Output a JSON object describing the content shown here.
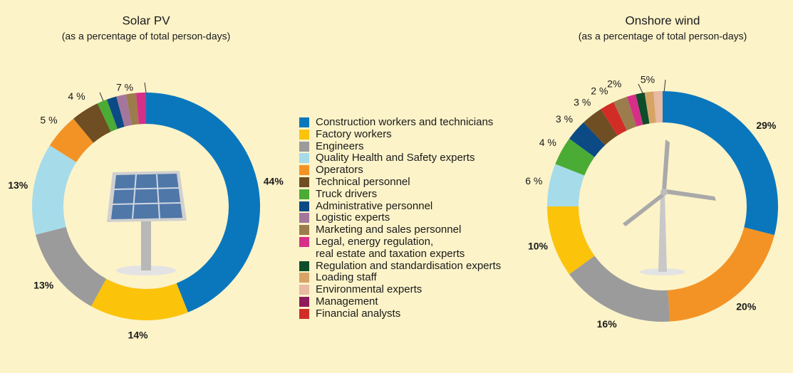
{
  "legend": {
    "items": [
      {
        "name": "Construction workers and technicians",
        "color": "#0a77bd"
      },
      {
        "name": "Factory workers",
        "color": "#fcc30b"
      },
      {
        "name": "Engineers",
        "color": "#9b9b9b"
      },
      {
        "name": "Quality Health and Safety experts",
        "color": "#a6dbea"
      },
      {
        "name": "Operators",
        "color": "#f39325"
      },
      {
        "name": "Technical personnel",
        "color": "#6f4e24"
      },
      {
        "name": "Truck drivers",
        "color": "#4aab35"
      },
      {
        "name": "Administrative personnel",
        "color": "#0b4a84"
      },
      {
        "name": "Logistic experts",
        "color": "#a5769b"
      },
      {
        "name": "Marketing and sales personnel",
        "color": "#9c7b4c"
      },
      {
        "name": "Legal, energy regulation,\nreal estate and taxation experts",
        "color": "#d62f88"
      },
      {
        "name": "Regulation and standardisation experts",
        "color": "#0e4d2a"
      },
      {
        "name": "Loading staff",
        "color": "#d7a466"
      },
      {
        "name": "Environmental experts",
        "color": "#e8b9a3"
      },
      {
        "name": "Management",
        "color": "#8e1b5b"
      },
      {
        "name": "Financial analysts",
        "color": "#d12d26"
      }
    ]
  },
  "chart_data": [
    {
      "type": "pie",
      "title": "Solar PV",
      "subtitle": "(as a percentage of total person-days)",
      "categories": [
        "Construction workers and technicians",
        "Factory workers",
        "Engineers",
        "Quality Health and Safety experts",
        "Operators",
        "Technical personnel",
        "Truck drivers",
        "Administrative personnel",
        "Logistic experts",
        "Marketing and sales personnel",
        "Legal, energy regulation,\nreal estate and taxation experts"
      ],
      "values": [
        44,
        14,
        13,
        13,
        5,
        4,
        1.4,
        1.4,
        1.4,
        1.4,
        1.4
      ],
      "value_labels": [
        "44%",
        "14%",
        "13%",
        "13%",
        "5 %",
        "4 %",
        null,
        null,
        null,
        null,
        null
      ],
      "annotations": [
        "7 %"
      ]
    },
    {
      "type": "pie",
      "title": "Onshore wind",
      "subtitle": "(as a percentage of total person-days)",
      "categories": [
        "Construction workers and technicians",
        "Operators",
        "Engineers",
        "Factory workers",
        "Quality Health and Safety experts",
        "Truck drivers",
        "Administrative personnel",
        "Technical personnel",
        "Financial analysts",
        "Marketing and sales personnel",
        "Legal, energy regulation,\nreal estate and taxation experts",
        "Regulation and standardisation experts",
        "Loading staff",
        "Environmental experts"
      ],
      "values": [
        29,
        20,
        16,
        10,
        6,
        4,
        3,
        3,
        2,
        2,
        1.25,
        1.25,
        1.25,
        1.25
      ],
      "value_labels": [
        "29%",
        "20%",
        "16%",
        "10%",
        "6 %",
        "4 %",
        "3 %",
        "3 %",
        "2 %",
        "2%",
        null,
        null,
        null,
        null
      ],
      "annotations": [
        "5%"
      ]
    }
  ]
}
